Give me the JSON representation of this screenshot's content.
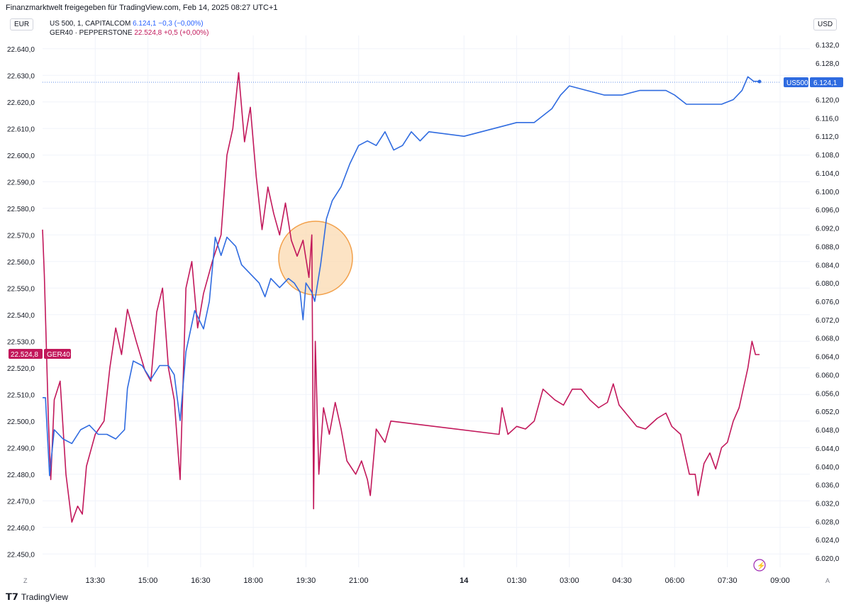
{
  "header": {
    "text": "Finanzmarktwelt freigegeben für TradingView.com, Feb 14, 2025 08:27 UTC+1"
  },
  "currency_left": "EUR",
  "currency_right": "USD",
  "legend": {
    "us500": {
      "name": "US 500, 1, CAPITALCOM",
      "price": "6.124,1",
      "change": "−0,3 (−0,00%)"
    },
    "ger40": {
      "name": "GER40 · PEPPERSTONE",
      "price": "22.524,8",
      "change": "+0,5 (+0,00%)"
    }
  },
  "price_tags": {
    "ger40_value": "22.524,8",
    "ger40_label": "GER40",
    "us500_label": "US500",
    "us500_value": "6.124,1"
  },
  "footer": {
    "brand": "TradingView",
    "z_label": "Z",
    "a_label": "A"
  },
  "colors": {
    "us500": "#2f6be0",
    "ger40": "#c2185b",
    "highlight": "#f7b26a"
  },
  "chart_data": {
    "type": "line",
    "x_ticks": [
      "13:30",
      "15:00",
      "16:30",
      "18:00",
      "19:30",
      "21:00",
      "14",
      "01:30",
      "03:00",
      "04:30",
      "06:00",
      "07:30",
      "09:00"
    ],
    "left_axis": {
      "currency": "EUR",
      "ylim": [
        22445,
        22645
      ],
      "ticks": [
        "22.640,0",
        "22.630,0",
        "22.620,0",
        "22.610,0",
        "22.600,0",
        "22.590,0",
        "22.580,0",
        "22.570,0",
        "22.560,0",
        "22.550,0",
        "22.540,0",
        "22.530,0",
        "22.520,0",
        "22.510,0",
        "22.500,0",
        "22.490,0",
        "22.480,0",
        "22.470,0",
        "22.460,0",
        "22.450,0"
      ]
    },
    "right_axis": {
      "currency": "USD",
      "ylim": [
        6018,
        6134
      ],
      "ticks": [
        "6.132,0",
        "6.128,0",
        "6.124,0",
        "6.120,0",
        "6.116,0",
        "6.112,0",
        "6.108,0",
        "6.104,0",
        "6.100,0",
        "6.096,0",
        "6.092,0",
        "6.088,0",
        "6.084,0",
        "6.080,0",
        "6.076,0",
        "6.072,0",
        "6.068,0",
        "6.064,0",
        "6.060,0",
        "6.056,0",
        "6.052,0",
        "6.048,0",
        "6.044,0",
        "6.040,0",
        "6.036,0",
        "6.032,0",
        "6.028,0",
        "6.024,0",
        "6.020,0"
      ]
    },
    "series": [
      {
        "name": "GER40",
        "axis": "left",
        "points": [
          [
            "Feb 13 12:00",
            22572
          ],
          [
            "Feb 13 12:03",
            22555
          ],
          [
            "Feb 13 12:10",
            22500
          ],
          [
            "Feb 13 12:14",
            22478
          ],
          [
            "Feb 13 12:20",
            22508
          ],
          [
            "Feb 13 12:30",
            22515
          ],
          [
            "Feb 13 12:40",
            22480
          ],
          [
            "Feb 13 12:50",
            22462
          ],
          [
            "Feb 13 13:00",
            22468
          ],
          [
            "Feb 13 13:08",
            22465
          ],
          [
            "Feb 13 13:15",
            22483
          ],
          [
            "Feb 13 13:30",
            22495
          ],
          [
            "Feb 13 13:45",
            22500
          ],
          [
            "Feb 13 13:55",
            22520
          ],
          [
            "Feb 13 14:05",
            22535
          ],
          [
            "Feb 13 14:15",
            22525
          ],
          [
            "Feb 13 14:25",
            22542
          ],
          [
            "Feb 13 14:40",
            22530
          ],
          [
            "Feb 13 14:55",
            22519
          ],
          [
            "Feb 13 15:05",
            22515
          ],
          [
            "Feb 13 15:15",
            22541
          ],
          [
            "Feb 13 15:25",
            22550
          ],
          [
            "Feb 13 15:35",
            22520
          ],
          [
            "Feb 13 15:45",
            22508
          ],
          [
            "Feb 13 15:55",
            22478
          ],
          [
            "Feb 13 16:05",
            22550
          ],
          [
            "Feb 13 16:15",
            22560
          ],
          [
            "Feb 13 16:25",
            22535
          ],
          [
            "Feb 13 16:35",
            22548
          ],
          [
            "Feb 13 16:50",
            22560
          ],
          [
            "Feb 13 17:05",
            22570
          ],
          [
            "Feb 13 17:15",
            22600
          ],
          [
            "Feb 13 17:25",
            22610
          ],
          [
            "Feb 13 17:35",
            22631
          ],
          [
            "Feb 13 17:45",
            22605
          ],
          [
            "Feb 13 17:55",
            22618
          ],
          [
            "Feb 13 18:05",
            22592
          ],
          [
            "Feb 13 18:15",
            22572
          ],
          [
            "Feb 13 18:25",
            22588
          ],
          [
            "Feb 13 18:35",
            22578
          ],
          [
            "Feb 13 18:45",
            22570
          ],
          [
            "Feb 13 18:55",
            22582
          ],
          [
            "Feb 13 19:05",
            22568
          ],
          [
            "Feb 13 19:15",
            22562
          ],
          [
            "Feb 13 19:25",
            22568
          ],
          [
            "Feb 13 19:35",
            22554
          ],
          [
            "Feb 13 19:40",
            22570
          ],
          [
            "Feb 13 19:43",
            22467
          ],
          [
            "Feb 13 19:46",
            22530
          ],
          [
            "Feb 13 19:52",
            22480
          ],
          [
            "Feb 13 20:00",
            22505
          ],
          [
            "Feb 13 20:10",
            22495
          ],
          [
            "Feb 13 20:20",
            22507
          ],
          [
            "Feb 13 20:30",
            22497
          ],
          [
            "Feb 13 20:40",
            22485
          ],
          [
            "Feb 13 20:55",
            22480
          ],
          [
            "Feb 13 21:05",
            22485
          ],
          [
            "Feb 13 21:15",
            22478
          ],
          [
            "Feb 13 21:20",
            22472
          ],
          [
            "Feb 13 21:30",
            22497
          ],
          [
            "Feb 13 21:45",
            22492
          ],
          [
            "Feb 13 21:55",
            22500
          ],
          [
            "Feb 14 01:00",
            22495
          ],
          [
            "Feb 14 01:05",
            22505
          ],
          [
            "Feb 14 01:15",
            22495
          ],
          [
            "Feb 14 01:30",
            22498
          ],
          [
            "Feb 14 01:45",
            22497
          ],
          [
            "Feb 14 02:00",
            22500
          ],
          [
            "Feb 14 02:15",
            22512
          ],
          [
            "Feb 14 02:35",
            22508
          ],
          [
            "Feb 14 02:50",
            22506
          ],
          [
            "Feb 14 03:05",
            22512
          ],
          [
            "Feb 14 03:20",
            22512
          ],
          [
            "Feb 14 03:35",
            22508
          ],
          [
            "Feb 14 03:50",
            22505
          ],
          [
            "Feb 14 04:05",
            22507
          ],
          [
            "Feb 14 04:15",
            22514
          ],
          [
            "Feb 14 04:25",
            22506
          ],
          [
            "Feb 14 04:40",
            22502
          ],
          [
            "Feb 14 04:55",
            22498
          ],
          [
            "Feb 14 05:10",
            22497
          ],
          [
            "Feb 14 05:30",
            22501
          ],
          [
            "Feb 14 05:45",
            22503
          ],
          [
            "Feb 14 05:55",
            22498
          ],
          [
            "Feb 14 06:10",
            22495
          ],
          [
            "Feb 14 06:25",
            22480
          ],
          [
            "Feb 14 06:35",
            22480
          ],
          [
            "Feb 14 06:40",
            22472
          ],
          [
            "Feb 14 06:50",
            22484
          ],
          [
            "Feb 14 07:00",
            22488
          ],
          [
            "Feb 14 07:10",
            22482
          ],
          [
            "Feb 14 07:20",
            22490
          ],
          [
            "Feb 14 07:30",
            22492
          ],
          [
            "Feb 14 07:40",
            22500
          ],
          [
            "Feb 14 07:50",
            22505
          ],
          [
            "Feb 14 08:00",
            22515
          ],
          [
            "Feb 14 08:05",
            22520
          ],
          [
            "Feb 14 08:12",
            22530
          ],
          [
            "Feb 14 08:18",
            22525
          ],
          [
            "Feb 14 08:25",
            22525
          ]
        ]
      },
      {
        "name": "US500",
        "axis": "right",
        "points": [
          [
            "Feb 13 12:00",
            6055
          ],
          [
            "Feb 13 12:05",
            6055
          ],
          [
            "Feb 13 12:12",
            6038
          ],
          [
            "Feb 13 12:20",
            6048
          ],
          [
            "Feb 13 12:35",
            6046
          ],
          [
            "Feb 13 12:50",
            6045
          ],
          [
            "Feb 13 13:05",
            6048
          ],
          [
            "Feb 13 13:20",
            6049
          ],
          [
            "Feb 13 13:35",
            6047
          ],
          [
            "Feb 13 13:50",
            6047
          ],
          [
            "Feb 13 14:05",
            6046
          ],
          [
            "Feb 13 14:20",
            6048
          ],
          [
            "Feb 13 14:25",
            6057
          ],
          [
            "Feb 13 14:35",
            6063
          ],
          [
            "Feb 13 14:50",
            6062
          ],
          [
            "Feb 13 15:05",
            6059
          ],
          [
            "Feb 13 15:20",
            6062
          ],
          [
            "Feb 13 15:35",
            6062
          ],
          [
            "Feb 13 15:45",
            6060
          ],
          [
            "Feb 13 15:55",
            6050
          ],
          [
            "Feb 13 16:05",
            6065
          ],
          [
            "Feb 13 16:20",
            6074
          ],
          [
            "Feb 13 16:35",
            6070
          ],
          [
            "Feb 13 16:45",
            6076
          ],
          [
            "Feb 13 16:55",
            6090
          ],
          [
            "Feb 13 17:05",
            6086
          ],
          [
            "Feb 13 17:15",
            6090
          ],
          [
            "Feb 13 17:30",
            6088
          ],
          [
            "Feb 13 17:40",
            6084
          ],
          [
            "Feb 13 17:55",
            6082
          ],
          [
            "Feb 13 18:10",
            6080
          ],
          [
            "Feb 13 18:20",
            6077
          ],
          [
            "Feb 13 18:30",
            6081
          ],
          [
            "Feb 13 18:45",
            6079
          ],
          [
            "Feb 13 19:00",
            6081
          ],
          [
            "Feb 13 19:10",
            6080
          ],
          [
            "Feb 13 19:20",
            6078
          ],
          [
            "Feb 13 19:25",
            6072
          ],
          [
            "Feb 13 19:30",
            6080
          ],
          [
            "Feb 13 19:40",
            6078
          ],
          [
            "Feb 13 19:45",
            6076
          ],
          [
            "Feb 13 19:55",
            6084
          ],
          [
            "Feb 13 20:05",
            6094
          ],
          [
            "Feb 13 20:15",
            6098
          ],
          [
            "Feb 13 20:30",
            6101
          ],
          [
            "Feb 13 20:45",
            6106
          ],
          [
            "Feb 13 21:00",
            6110
          ],
          [
            "Feb 13 21:15",
            6111
          ],
          [
            "Feb 13 21:30",
            6110
          ],
          [
            "Feb 13 21:45",
            6113
          ],
          [
            "Feb 13 22:00",
            6109
          ],
          [
            "Feb 13 22:15",
            6110
          ],
          [
            "Feb 13 22:30",
            6113
          ],
          [
            "Feb 13 22:45",
            6111
          ],
          [
            "Feb 13 23:00",
            6113
          ],
          [
            "Feb 14 00:00",
            6112
          ],
          [
            "Feb 14 01:00",
            6114
          ],
          [
            "Feb 14 01:30",
            6115
          ],
          [
            "Feb 14 02:00",
            6115
          ],
          [
            "Feb 14 02:30",
            6118
          ],
          [
            "Feb 14 02:45",
            6121
          ],
          [
            "Feb 14 03:00",
            6123
          ],
          [
            "Feb 14 03:30",
            6122
          ],
          [
            "Feb 14 04:00",
            6121
          ],
          [
            "Feb 14 04:30",
            6121
          ],
          [
            "Feb 14 05:00",
            6122
          ],
          [
            "Feb 14 05:30",
            6122
          ],
          [
            "Feb 14 05:45",
            6122
          ],
          [
            "Feb 14 06:00",
            6121
          ],
          [
            "Feb 14 06:20",
            6119
          ],
          [
            "Feb 14 06:40",
            6119
          ],
          [
            "Feb 14 07:00",
            6119
          ],
          [
            "Feb 14 07:20",
            6119
          ],
          [
            "Feb 14 07:40",
            6120
          ],
          [
            "Feb 14 07:55",
            6122
          ],
          [
            "Feb 14 08:05",
            6125
          ],
          [
            "Feb 14 08:15",
            6124
          ],
          [
            "Feb 14 08:25",
            6124
          ]
        ]
      }
    ],
    "annotations": [
      "shaded circle marker around the 19:30 drop"
    ],
    "grid": true,
    "legend_position": "top-left"
  }
}
